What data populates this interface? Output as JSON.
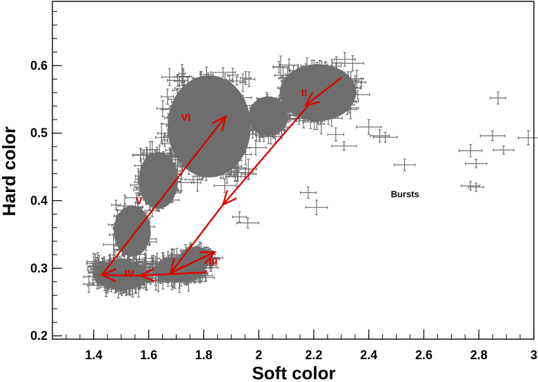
{
  "chart_data": {
    "type": "scatter",
    "xlabel": "Soft color",
    "ylabel": "Hard color",
    "xlim": [
      1.25,
      3.0
    ],
    "ylim": [
      0.195,
      0.695
    ],
    "xticks": [
      1.4,
      1.6,
      1.8,
      2.0,
      2.2,
      2.4,
      2.6,
      2.8,
      3.0
    ],
    "xtick_labels": [
      "1.4",
      "1.6",
      "1.8",
      "2",
      "2.2",
      "2.4",
      "2.6",
      "2.8",
      "3"
    ],
    "yticks": [
      0.2,
      0.3,
      0.4,
      0.5,
      0.6
    ],
    "ytick_labels": [
      "0.2",
      "0.3",
      "0.4",
      "0.5",
      "0.6"
    ],
    "grid": false,
    "point_color": "#6e6e6e",
    "track_color": "#e00000",
    "clusters": [
      {
        "x": [
          1.38,
          1.62
        ],
        "y": [
          0.265,
          0.315
        ],
        "weight": 1.6
      },
      {
        "x": [
          1.6,
          1.82
        ],
        "y": [
          0.275,
          0.32
        ],
        "weight": 1.0
      },
      {
        "x": [
          1.7,
          1.84
        ],
        "y": [
          0.295,
          0.335
        ],
        "weight": 0.4
      },
      {
        "x": [
          1.46,
          1.62
        ],
        "y": [
          0.31,
          0.4
        ],
        "weight": 0.5
      },
      {
        "x": [
          1.55,
          1.72
        ],
        "y": [
          0.38,
          0.48
        ],
        "weight": 0.7
      },
      {
        "x": [
          1.64,
          2.0
        ],
        "y": [
          0.42,
          0.6
        ],
        "weight": 2.4
      },
      {
        "x": [
          1.95,
          2.12
        ],
        "y": [
          0.49,
          0.56
        ],
        "weight": 0.6
      },
      {
        "x": [
          2.05,
          2.38
        ],
        "y": [
          0.51,
          0.61
        ],
        "weight": 1.4
      }
    ],
    "burst_points": [
      {
        "x": 2.28,
        "y": 0.498
      },
      {
        "x": 2.31,
        "y": 0.481
      },
      {
        "x": 2.4,
        "y": 0.509
      },
      {
        "x": 2.44,
        "y": 0.496
      },
      {
        "x": 2.46,
        "y": 0.494
      },
      {
        "x": 2.53,
        "y": 0.453
      },
      {
        "x": 2.36,
        "y": 0.557
      },
      {
        "x": 2.18,
        "y": 0.412
      },
      {
        "x": 2.21,
        "y": 0.39
      },
      {
        "x": 2.77,
        "y": 0.474
      },
      {
        "x": 2.79,
        "y": 0.455
      },
      {
        "x": 2.85,
        "y": 0.496
      },
      {
        "x": 2.87,
        "y": 0.552
      },
      {
        "x": 2.89,
        "y": 0.475
      },
      {
        "x": 2.98,
        "y": 0.493
      },
      {
        "x": 2.77,
        "y": 0.422
      },
      {
        "x": 2.79,
        "y": 0.42
      },
      {
        "x": 1.93,
        "y": 0.376
      },
      {
        "x": 1.96,
        "y": 0.367
      },
      {
        "x": 1.59,
        "y": 0.42
      },
      {
        "x": 1.57,
        "y": 0.468
      },
      {
        "x": 1.87,
        "y": 0.59
      }
    ],
    "tracks": [
      {
        "from": [
          1.43,
          0.29
        ],
        "to": [
          1.88,
          0.525
        ]
      },
      {
        "from": [
          2.3,
          0.582
        ],
        "to": [
          2.17,
          0.541
        ]
      },
      {
        "from": [
          2.18,
          0.541
        ],
        "to": [
          1.87,
          0.394
        ]
      },
      {
        "from": [
          1.87,
          0.394
        ],
        "to": [
          1.68,
          0.293
        ]
      },
      {
        "from": [
          1.68,
          0.293
        ],
        "to": [
          1.84,
          0.324
        ]
      },
      {
        "from": [
          1.81,
          0.294
        ],
        "to": [
          1.57,
          0.289
        ]
      },
      {
        "from": [
          1.57,
          0.289
        ],
        "to": [
          1.43,
          0.29
        ]
      }
    ],
    "region_labels": [
      {
        "text": "II",
        "x": 2.165,
        "y": 0.555
      },
      {
        "text": "III",
        "x": 1.835,
        "y": 0.305
      },
      {
        "text": "IV",
        "x": 1.53,
        "y": 0.287
      },
      {
        "text": "V",
        "x": 1.565,
        "y": 0.395
      },
      {
        "text": "VI",
        "x": 1.735,
        "y": 0.518
      }
    ],
    "annotation": {
      "text": "Bursts",
      "x": 2.48,
      "y": 0.41
    }
  }
}
